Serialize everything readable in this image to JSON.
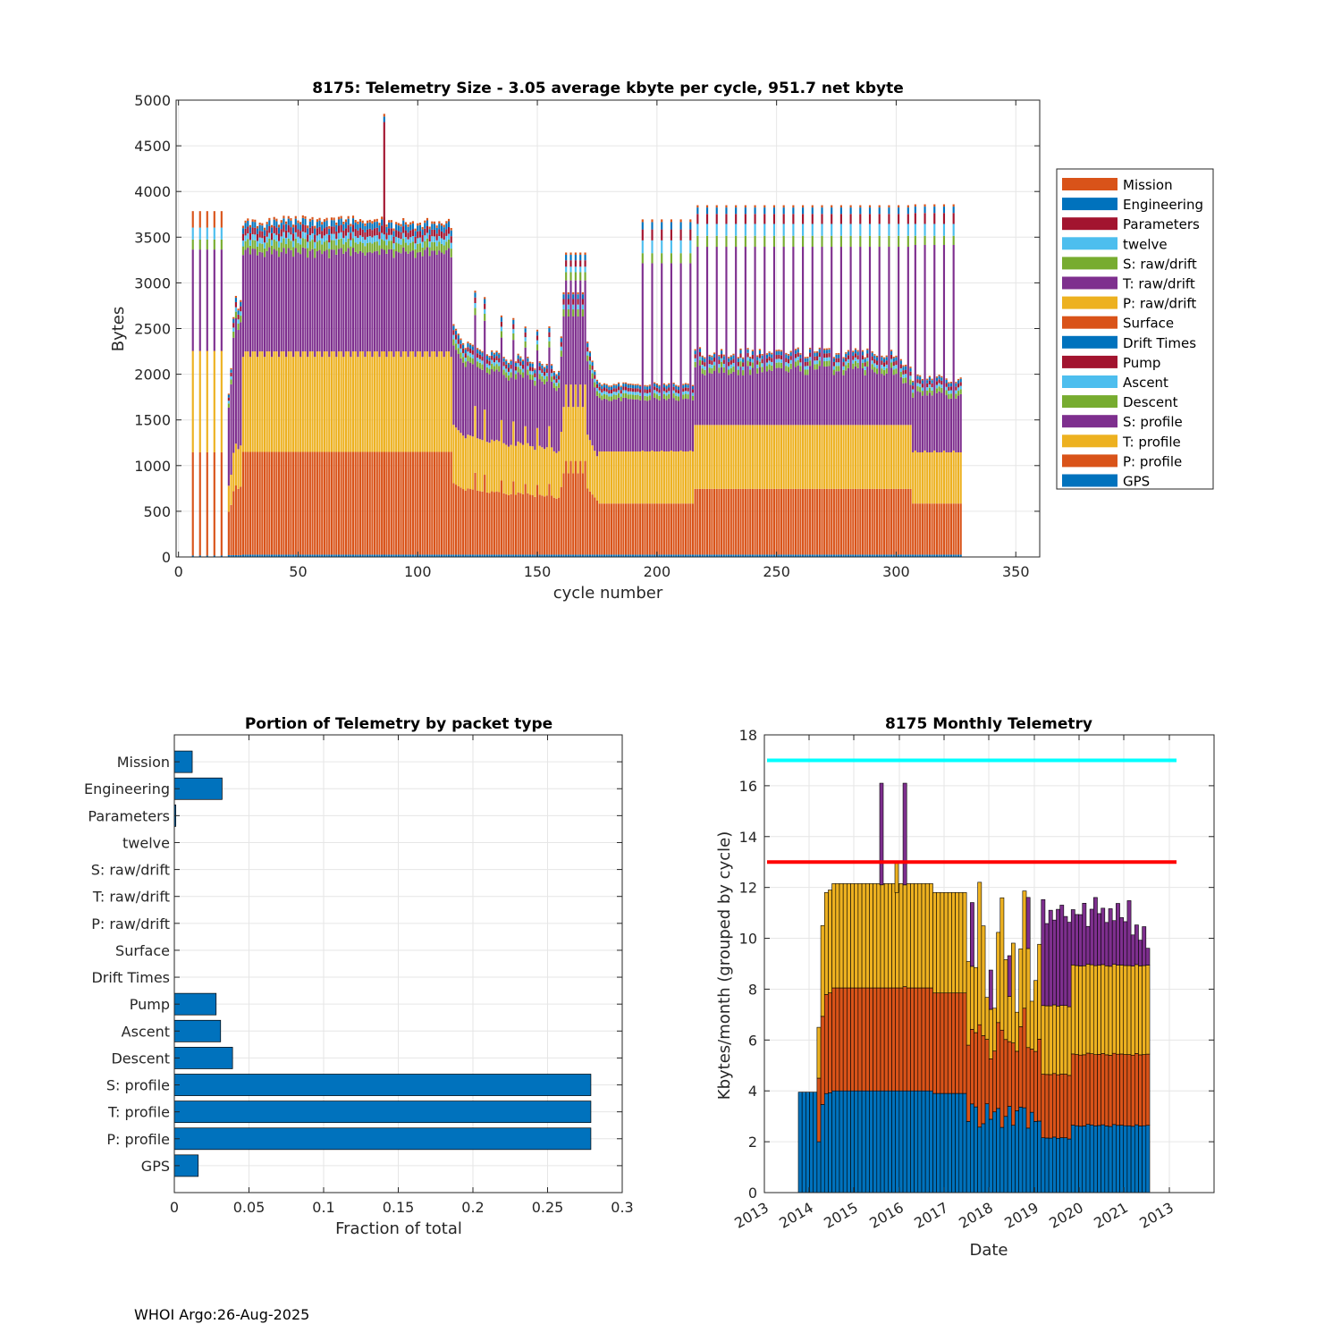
{
  "footer": "WHOI Argo:26-Aug-2025",
  "chart_data": [
    {
      "type": "bar",
      "stacked": true,
      "title": "8175: Telemetry Size - 3.05 average kbyte per cycle,  951.7 net kbyte",
      "xlabel": "cycle number",
      "ylabel": "Bytes",
      "xlim": [
        -1,
        360
      ],
      "ylim": [
        0,
        5000
      ],
      "xticks": [
        0,
        50,
        100,
        150,
        200,
        250,
        300,
        350
      ],
      "yticks": [
        0,
        500,
        1000,
        1500,
        2000,
        2500,
        3000,
        3500,
        4000,
        4500,
        5000
      ],
      "legend_position": "right",
      "legend": [
        {
          "name": "Mission",
          "color": "#D95319"
        },
        {
          "name": "Engineering",
          "color": "#0072BD"
        },
        {
          "name": "Parameters",
          "color": "#A2142F"
        },
        {
          "name": "twelve",
          "color": "#4DBEEE"
        },
        {
          "name": "S: raw/drift",
          "color": "#77AC30"
        },
        {
          "name": "T: raw/drift",
          "color": "#7E2F8E"
        },
        {
          "name": "P: raw/drift",
          "color": "#EDB120"
        },
        {
          "name": "Surface",
          "color": "#D95319"
        },
        {
          "name": "Drift Times",
          "color": "#0072BD"
        },
        {
          "name": "Pump",
          "color": "#A2142F"
        },
        {
          "name": "Ascent",
          "color": "#4DBEEE"
        },
        {
          "name": "Descent",
          "color": "#77AC30"
        },
        {
          "name": "S: profile",
          "color": "#7E2F8E"
        },
        {
          "name": "T: profile",
          "color": "#EDB120"
        },
        {
          "name": "P: profile",
          "color": "#D95319"
        },
        {
          "name": "GPS",
          "color": "#0072BD"
        }
      ],
      "stack_order_bottom_to_top": [
        "GPS",
        "P: profile",
        "T: profile",
        "S: profile",
        "Descent",
        "Ascent",
        "Pump",
        "Drift Times",
        "Surface",
        "P: raw/drift",
        "T: raw/drift",
        "S: raw/drift",
        "twelve",
        "Parameters",
        "Engineering",
        "Mission"
      ],
      "segments": [
        {
          "range": [
            6,
            20
          ],
          "step": 3,
          "gps": 20,
          "p": 1125,
          "t": 1125,
          "s": 1110,
          "tail": 450,
          "description": "sparse tall bars ~3800"
        },
        {
          "range": [
            21,
            26
          ],
          "step": 1,
          "gps": 30,
          "p": 550,
          "t": 550,
          "s": 550,
          "tail": 400,
          "description": "ramp ~2000-3000"
        },
        {
          "range": [
            27,
            114
          ],
          "step": 1,
          "gps": 30,
          "p": 1120,
          "t": 1110,
          "s": 1120,
          "tail": 470,
          "description": "main block ~3850"
        },
        {
          "range": [
            115,
            175
          ],
          "step": 1,
          "gps": 30,
          "p": 850,
          "t": 700,
          "s": 800,
          "tail": 400,
          "description": "variable ~2000-3500"
        },
        {
          "range": [
            176,
            215
          ],
          "step": 1,
          "gps": 30,
          "p": 570,
          "t": 570,
          "s": 580,
          "tail": 300,
          "description": "low block ~2050 with tall spikes ~3800"
        },
        {
          "range": [
            216,
            306
          ],
          "step": 1,
          "gps": 30,
          "p": 720,
          "t": 720,
          "s": 700,
          "tail": 350,
          "description": "mid block ~2500 with spikes ~3600"
        },
        {
          "range": [
            307,
            327
          ],
          "step": 1,
          "gps": 30,
          "p": 560,
          "t": 560,
          "s": 600,
          "tail": 350,
          "description": "end block ~2100 with spikes ~3850"
        }
      ],
      "spike": {
        "cycle": 86,
        "value": 4850
      }
    },
    {
      "type": "barh",
      "title": "Portion of Telemetry by packet type",
      "xlabel": "Fraction of total",
      "xlim": [
        0,
        0.3
      ],
      "xticks": [
        0,
        0.05,
        0.1,
        0.15,
        0.2,
        0.25,
        0.3
      ],
      "xtick_labels": [
        "0",
        "0.05",
        "0.1",
        "0.15",
        "0.2",
        "0.25",
        "0.3"
      ],
      "categories": [
        "Mission",
        "Engineering",
        "Parameters",
        "twelve",
        "S: raw/drift",
        "T: raw/drift",
        "P: raw/drift",
        "Surface",
        "Drift Times",
        "Pump",
        "Ascent",
        "Descent",
        "S: profile",
        "T: profile",
        "P: profile",
        "GPS"
      ],
      "values": [
        0.012,
        0.032,
        0.001,
        0,
        0,
        0,
        0,
        0,
        0,
        0.028,
        0.031,
        0.039,
        0.279,
        0.279,
        0.279,
        0.016
      ],
      "color": "#0072BD"
    },
    {
      "type": "bar",
      "stacked": true,
      "title": "8175 Monthly Telemetry",
      "xlabel": "Date",
      "ylabel": "Kbytes/month (grouped by cycle)",
      "ylim": [
        0,
        18
      ],
      "yticks": [
        0,
        2,
        4,
        6,
        8,
        10,
        12,
        14,
        16,
        18
      ],
      "xtick_labels": [
        "2013",
        "2014",
        "2015",
        "2016",
        "2017",
        "2018",
        "2019",
        "2020",
        "2021",
        "2013"
      ],
      "reference_lines": [
        {
          "value": 17,
          "color": "#00FFFF"
        },
        {
          "value": 13,
          "color": "#FF0000"
        }
      ],
      "series_colors": [
        "#0072BD",
        "#D95319",
        "#EDB120",
        "#7E2F8E"
      ],
      "month_start": 2013.8,
      "months_count": 94,
      "totals_description": "~4 for first months, ~12 through 2014-2016, spike 16.1 in mid 2015, variable 7-12 in 2017-2018, ~10.3-11.7 in 2019-2021"
    }
  ]
}
